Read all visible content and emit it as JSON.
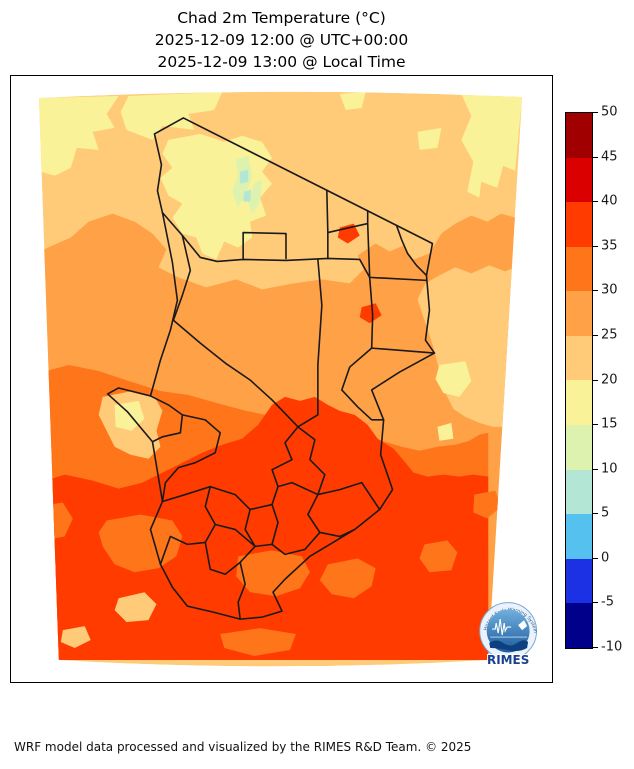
{
  "figure": {
    "title_line1": "Chad 2m Temperature (°C)",
    "title_line2": "2025-12-09 12:00 @ UTC+00:00",
    "title_line3": "2025-12-09 13:00 @ Local Time",
    "footer": "WRF model data processed and visualized by the RIMES R&D Team. © 2025"
  },
  "colorbar": {
    "ticks": [
      50,
      45,
      40,
      35,
      30,
      25,
      20,
      15,
      10,
      5,
      0,
      -5,
      -10
    ],
    "segments": [
      {
        "range": "45 to 50",
        "color": "#A00000"
      },
      {
        "range": "40 to 45",
        "color": "#DB0000"
      },
      {
        "range": "35 to 40",
        "color": "#FF3B00"
      },
      {
        "range": "30 to 35",
        "color": "#FF7519"
      },
      {
        "range": "25 to 30",
        "color": "#FFA147"
      },
      {
        "range": "20 to 25",
        "color": "#FFCB79"
      },
      {
        "range": "15 to 20",
        "color": "#FAF298"
      },
      {
        "range": "10 to 15",
        "color": "#DCF2AE"
      },
      {
        "range": "5 to 10",
        "color": "#B3E6D4"
      },
      {
        "range": "0 to 5",
        "color": "#55C1EF"
      },
      {
        "range": "-5 to 0",
        "color": "#1C31E3"
      },
      {
        "range": "-10 to -5",
        "color": "#00008B"
      }
    ]
  },
  "palette": {
    "t45_50": "#A00000",
    "t40_45": "#DB0000",
    "t35_40": "#FF3B00",
    "t30_35": "#FF7519",
    "t25_30": "#FFA147",
    "t20_25": "#FFCB79",
    "t15_20": "#FAF298",
    "t10_15": "#DCF2AE",
    "t5_10": "#B3E6D4",
    "boundary": "#1a1a1a"
  },
  "logo": {
    "wordmark": "RIMES",
    "ring_text": "Hazard Early Warning System"
  },
  "chart_data": {
    "type": "heatmap",
    "title": "Chad 2m Temperature (°C)",
    "subtitle_utc": "2025-12-09 12:00 @ UTC+00:00",
    "subtitle_local": "2025-12-09 13:00 @ Local Time",
    "variable": "2m Temperature",
    "units": "°C",
    "region": "Chad (with admin-1 region boundaries)",
    "colorbar_range": [
      -10,
      50
    ],
    "colorbar_step": 5,
    "colorbar_ticks": [
      50,
      45,
      40,
      35,
      30,
      25,
      20,
      15,
      10,
      5,
      0,
      -5,
      -10
    ],
    "field_summary": [
      "Northern Sahara belt mostly 20-25 °C with 15-20 °C patches",
      "Tibesti highlands cooler: 15-20 °C with 10-15 °C and 5-10 °C pockets",
      "Central belt 25-30 °C grading to 30-35 °C",
      "Lake Chad area locally cooler (20-25 / 15-20 °C)",
      "Southern half widely 35-40 °C with 30-35 °C islands",
      "Eastern (Sudan-side) lobe remains 20-25 °C far south"
    ]
  }
}
